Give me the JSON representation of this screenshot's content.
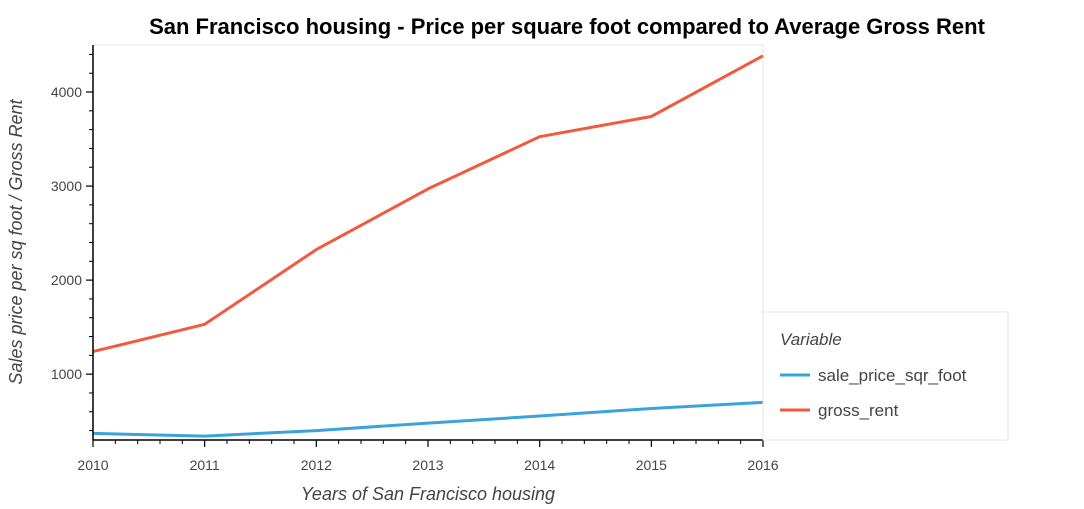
{
  "chart_data": {
    "type": "line",
    "title": "San Francisco housing - Price per square foot compared to Average Gross Rent",
    "xlabel": "Years of San Francisco housing",
    "ylabel": "Sales price per sq foot / Gross Rent",
    "x": [
      2010,
      2011,
      2012,
      2013,
      2014,
      2015,
      2016
    ],
    "xlim": [
      2010,
      2016
    ],
    "ylim": [
      300,
      4500
    ],
    "yticks": [
      1000,
      2000,
      3000,
      4000
    ],
    "xticks": [
      2010,
      2011,
      2012,
      2013,
      2014,
      2015,
      2016
    ],
    "legend_title": "Variable",
    "legend_position": "right",
    "grid": false,
    "series": [
      {
        "name": "sale_price_sqr_foot",
        "color": "#3aa3dc",
        "values": [
          370,
          342,
          400,
          480,
          555,
          635,
          700
        ]
      },
      {
        "name": "gross_rent",
        "color": "#f15a3e",
        "values": [
          1240,
          1530,
          2325,
          2970,
          3525,
          3740,
          4385
        ]
      }
    ]
  }
}
